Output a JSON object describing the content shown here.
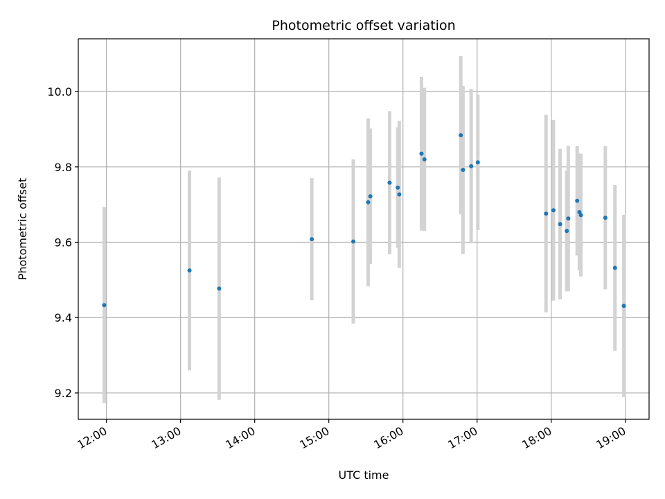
{
  "chart_data": {
    "type": "scatter",
    "title": "Photometric offset variation",
    "xlabel": "UTC time",
    "ylabel": "Photometric offset",
    "x_unit": "hours",
    "xlim": [
      11.62,
      19.32
    ],
    "ylim": [
      9.13,
      10.14
    ],
    "xticks": [
      {
        "value": 12,
        "label": "12:00"
      },
      {
        "value": 13,
        "label": "13:00"
      },
      {
        "value": 14,
        "label": "14:00"
      },
      {
        "value": 15,
        "label": "15:00"
      },
      {
        "value": 16,
        "label": "16:00"
      },
      {
        "value": 17,
        "label": "17:00"
      },
      {
        "value": 18,
        "label": "18:00"
      },
      {
        "value": 19,
        "label": "19:00"
      }
    ],
    "yticks": [
      {
        "value": 9.2,
        "label": "9.2"
      },
      {
        "value": 9.4,
        "label": "9.4"
      },
      {
        "value": 9.6,
        "label": "9.6"
      },
      {
        "value": 9.8,
        "label": "9.8"
      },
      {
        "value": 10.0,
        "label": "10.0"
      }
    ],
    "grid": true,
    "marker_color": "#1f77b4",
    "errorbar_color": "#d3d3d3",
    "points": [
      {
        "x": 11.97,
        "y": 9.433,
        "err": 0.26
      },
      {
        "x": 13.12,
        "y": 9.525,
        "err": 0.265
      },
      {
        "x": 13.52,
        "y": 9.477,
        "err": 0.295
      },
      {
        "x": 14.77,
        "y": 9.608,
        "err": 0.162
      },
      {
        "x": 15.33,
        "y": 9.602,
        "err": 0.218
      },
      {
        "x": 15.53,
        "y": 9.706,
        "err": 0.223
      },
      {
        "x": 15.56,
        "y": 9.722,
        "err": 0.18
      },
      {
        "x": 15.82,
        "y": 9.758,
        "err": 0.19
      },
      {
        "x": 15.93,
        "y": 9.745,
        "err": 0.16
      },
      {
        "x": 15.95,
        "y": 9.727,
        "err": 0.195
      },
      {
        "x": 16.25,
        "y": 9.835,
        "err": 0.204
      },
      {
        "x": 16.29,
        "y": 9.82,
        "err": 0.19
      },
      {
        "x": 16.78,
        "y": 9.884,
        "err": 0.21
      },
      {
        "x": 16.81,
        "y": 9.792,
        "err": 0.223
      },
      {
        "x": 16.92,
        "y": 9.802,
        "err": 0.205
      },
      {
        "x": 17.01,
        "y": 9.812,
        "err": 0.18
      },
      {
        "x": 17.93,
        "y": 9.676,
        "err": 0.262
      },
      {
        "x": 18.03,
        "y": 9.685,
        "err": 0.24
      },
      {
        "x": 18.12,
        "y": 9.648,
        "err": 0.2
      },
      {
        "x": 18.21,
        "y": 9.63,
        "err": 0.16
      },
      {
        "x": 18.23,
        "y": 9.663,
        "err": 0.193
      },
      {
        "x": 18.35,
        "y": 9.71,
        "err": 0.145
      },
      {
        "x": 18.38,
        "y": 9.68,
        "err": 0.155
      },
      {
        "x": 18.4,
        "y": 9.672,
        "err": 0.163
      },
      {
        "x": 18.73,
        "y": 9.665,
        "err": 0.19
      },
      {
        "x": 18.86,
        "y": 9.532,
        "err": 0.22
      },
      {
        "x": 18.98,
        "y": 9.431,
        "err": 0.242
      }
    ]
  }
}
